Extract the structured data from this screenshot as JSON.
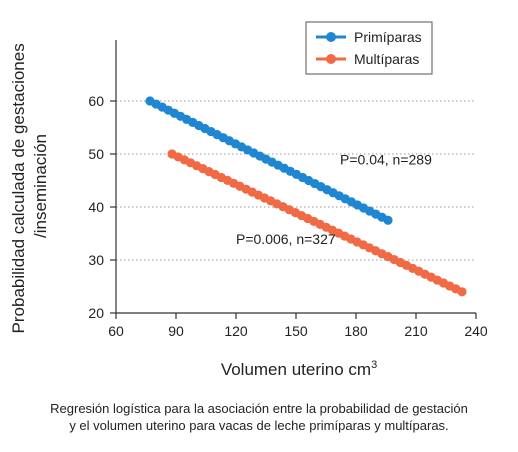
{
  "chart_data": {
    "type": "scatter",
    "xlabel": "Volumen uterino cm",
    "xlabel_sup": "3",
    "ylabel_lines": [
      "Probabilidad calculada de gestaciones",
      "/inseminación"
    ],
    "xlim": [
      60,
      240
    ],
    "ylim": [
      20,
      70
    ],
    "xticks": [
      60,
      90,
      120,
      150,
      180,
      210,
      240
    ],
    "yticks": [
      20,
      30,
      40,
      50,
      60
    ],
    "grid": "horizontal dotted",
    "legend_position": "top-right",
    "series": [
      {
        "name": "Primíparas",
        "color": "#1f86d1",
        "x_start": 77,
        "y_start": 60,
        "x_end": 196,
        "y_end": 37.5,
        "n_points": 40,
        "annotation": "P=0.04, n=289",
        "annotation_xy": [
          172,
          48
        ]
      },
      {
        "name": "Multíparas",
        "color": "#ef6a45",
        "x_start": 88,
        "y_start": 50,
        "x_end": 233,
        "y_end": 24,
        "n_points": 48,
        "annotation": "P=0.006, n=327",
        "annotation_xy": [
          120,
          33
        ]
      }
    ]
  },
  "caption": {
    "line1": "Regresión logística para la asociación entre la probabilidad de gestación",
    "line2": "y el volumen uterino para vacas de leche primíparas y multíparas."
  }
}
